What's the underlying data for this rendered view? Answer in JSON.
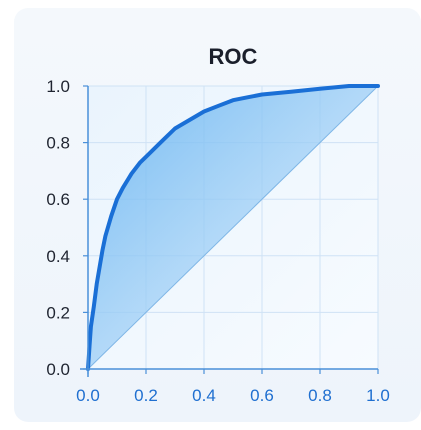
{
  "chart_data": {
    "type": "line",
    "title": "ROC",
    "xlabel": "",
    "ylabel": "",
    "xlim": [
      0,
      1
    ],
    "ylim": [
      0,
      1
    ],
    "xticks": [
      "0.0",
      "0.2",
      "0.4",
      "0.6",
      "0.8",
      "1.0"
    ],
    "yticks": [
      "0.0",
      "0.2",
      "0.4",
      "0.6",
      "0.8",
      "1.0"
    ],
    "grid": true,
    "legend": "none",
    "series": [
      {
        "x": [
          0.0,
          0.005,
          0.01,
          0.02,
          0.03,
          0.04,
          0.05,
          0.06,
          0.08,
          0.1,
          0.12,
          0.15,
          0.18,
          0.2,
          0.25,
          0.3,
          0.35,
          0.4,
          0.45,
          0.5,
          0.55,
          0.6,
          0.7,
          0.8,
          0.9,
          1.0
        ],
        "y": [
          0.0,
          0.08,
          0.15,
          0.22,
          0.3,
          0.36,
          0.42,
          0.47,
          0.54,
          0.6,
          0.64,
          0.69,
          0.73,
          0.75,
          0.8,
          0.85,
          0.88,
          0.91,
          0.93,
          0.95,
          0.96,
          0.97,
          0.98,
          0.99,
          1.0,
          1.0
        ],
        "fill_under": true
      },
      {
        "x": [
          0.0,
          1.0
        ],
        "y": [
          0.0,
          1.0
        ],
        "role": "diagonal"
      }
    ],
    "colors": {
      "curve": "#1a6fd6",
      "fill_top": "#5fb0f0",
      "fill_bottom": "#d8ebfb",
      "grid": "#cfe2f5",
      "axis": "#4a90d9",
      "diagonal": "#7fb6e6"
    }
  }
}
